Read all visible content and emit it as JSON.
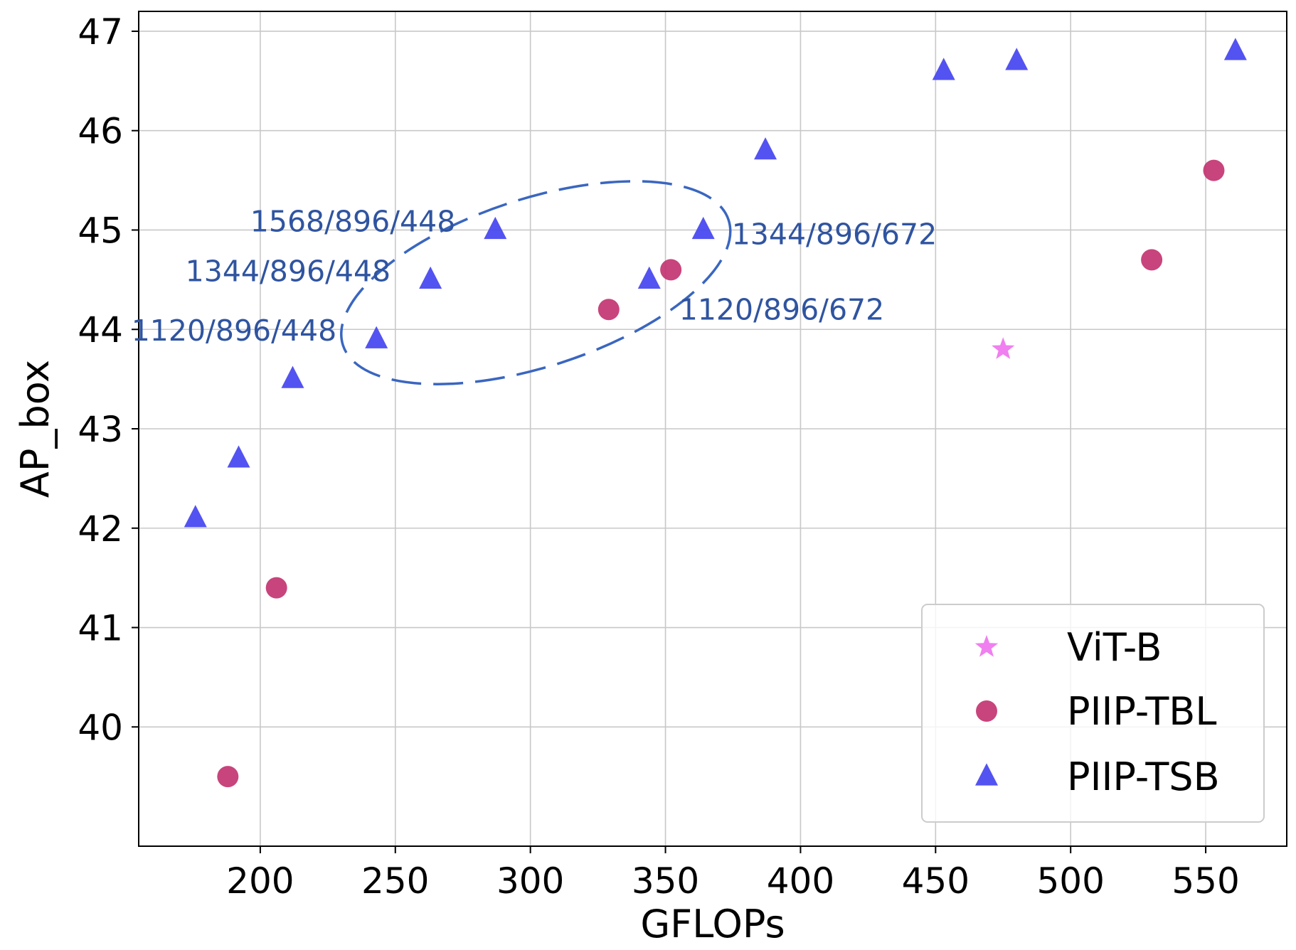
{
  "chart_data": {
    "type": "scatter",
    "xlabel": "GFLOPs",
    "ylabel": "AP_box",
    "xlim": [
      155,
      580
    ],
    "ylim": [
      38.8,
      47.2
    ],
    "xticks": [
      200,
      250,
      300,
      350,
      400,
      450,
      500,
      550
    ],
    "yticks": [
      40,
      41,
      42,
      43,
      44,
      45,
      46,
      47
    ],
    "grid": true,
    "legend_position": "bottom-right",
    "series": [
      {
        "name": "ViT-B",
        "marker": "star",
        "color": "#f07ff0",
        "points": [
          {
            "x": 475,
            "y": 43.8
          }
        ]
      },
      {
        "name": "PIIP-TBL",
        "marker": "circle",
        "color": "#c2306e",
        "points": [
          {
            "x": 188,
            "y": 39.5
          },
          {
            "x": 206,
            "y": 41.4
          },
          {
            "x": 329,
            "y": 44.2
          },
          {
            "x": 352,
            "y": 44.6
          },
          {
            "x": 530,
            "y": 44.7
          },
          {
            "x": 553,
            "y": 45.6
          }
        ]
      },
      {
        "name": "PIIP-TSB",
        "marker": "triangle",
        "color": "#4a4af0",
        "points": [
          {
            "x": 176,
            "y": 42.1
          },
          {
            "x": 192,
            "y": 42.7
          },
          {
            "x": 212,
            "y": 43.5
          },
          {
            "x": 243,
            "y": 43.9
          },
          {
            "x": 263,
            "y": 44.5
          },
          {
            "x": 287,
            "y": 45.0
          },
          {
            "x": 344,
            "y": 44.5
          },
          {
            "x": 364,
            "y": 45.0
          },
          {
            "x": 387,
            "y": 45.8
          },
          {
            "x": 453,
            "y": 46.6
          },
          {
            "x": 480,
            "y": 46.7
          },
          {
            "x": 561,
            "y": 46.8
          }
        ]
      }
    ],
    "annotations": [
      {
        "text": "1568/896/448",
        "x": 287,
        "y": 45.0,
        "anchor": "left-of"
      },
      {
        "text": "1344/896/448",
        "x": 263,
        "y": 44.5,
        "anchor": "left-of"
      },
      {
        "text": "1120/896/448",
        "x": 243,
        "y": 43.9,
        "anchor": "left-of"
      },
      {
        "text": "1344/896/672",
        "x": 364,
        "y": 45.0,
        "anchor": "right-of"
      },
      {
        "text": "1120/896/672",
        "x": 344,
        "y": 44.5,
        "anchor": "below-right"
      }
    ],
    "highlight_ellipse": {
      "center_x": 302,
      "center_y": 44.47,
      "style": "dashed",
      "color": "#3a66c0"
    }
  }
}
